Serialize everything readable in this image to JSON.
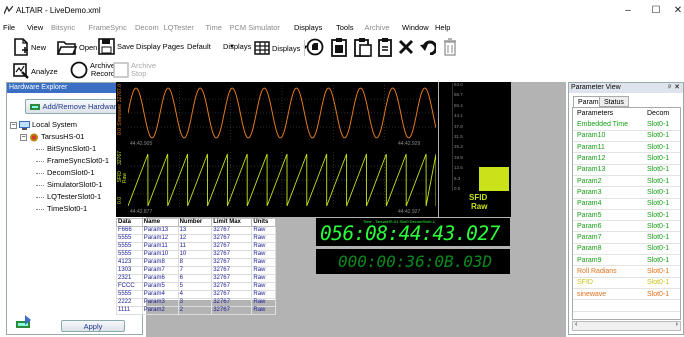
{
  "window": {
    "title": "ALTAIR - LiveDemo.xml",
    "minimize": "–",
    "maximize": "☐",
    "close": "✕"
  },
  "menu": [
    {
      "label": "File",
      "dim": false
    },
    {
      "label": "View",
      "dim": false
    },
    {
      "label": "Bitsync",
      "dim": true
    },
    {
      "label": "FrameSync",
      "dim": true
    },
    {
      "label": "Decom",
      "dim": true
    },
    {
      "label": "LQTester",
      "dim": true
    },
    {
      "label": "Time",
      "dim": true
    },
    {
      "label": "PCM Simulator",
      "dim": true
    },
    {
      "label": "Displays",
      "dim": false
    },
    {
      "label": "Tools",
      "dim": false
    },
    {
      "label": "Archive",
      "dim": true
    },
    {
      "label": "Window",
      "dim": false
    },
    {
      "label": "Help",
      "dim": false
    }
  ],
  "toolbar": {
    "new": "New",
    "open": "Open",
    "save": "Save",
    "display_pages": "Display Pages",
    "display_pages_value": "Default",
    "displays": "Displays",
    "displays2": "Displays",
    "analyze": "Analyze",
    "archive_record": "Archive\nRecord",
    "archive_stop": "Archive\nStop"
  },
  "explorer": {
    "title": "Hardware Explorer",
    "pin": "ᵖ",
    "close": "✕",
    "add_button": "Add/Remove Hardware",
    "root": "Local System",
    "device": "TarsusHS-01",
    "children": [
      "BitSyncSlot0-1",
      "FrameSyncSlot0-1",
      "DecomSlot0-1",
      "SimulatorSlot0-1",
      "LQTesterSlot0-1",
      "TimeSlot0-1"
    ],
    "apply": "Apply"
  },
  "plots": {
    "top": {
      "ylabel_top": "32767.0",
      "ylabel_mid": "Sinewave",
      "ylabel_bottom": "0.0",
      "time_left": "44:42.905",
      "time_right": "44:42.929"
    },
    "bottom": {
      "ylabel_top": "32767",
      "ylabel_mid1": "SFID",
      "ylabel_mid2": "Raw",
      "ylabel_bottom": "0.0",
      "time_left": "44:42.877",
      "time_right": "44:42.927"
    }
  },
  "bar": {
    "ticks": [
      "63.0",
      "56.7",
      "50.4",
      "44.1",
      "37.8",
      "31.5",
      "25.2",
      "18.9",
      "12.6",
      "6.3",
      "0.0"
    ],
    "value_fraction": 0.22,
    "label1": "SFID",
    "label2": "Raw",
    "color": "#c9e21a"
  },
  "param_table": {
    "headers": [
      "Data",
      "Name",
      "Number",
      "Limit Max",
      "Units"
    ],
    "rows": [
      [
        "F666",
        "Param13",
        "13",
        "32767",
        "Raw"
      ],
      [
        "5555",
        "Param12",
        "12",
        "32767",
        "Raw"
      ],
      [
        "5555",
        "Param11",
        "11",
        "32767",
        "Raw"
      ],
      [
        "5555",
        "Param10",
        "10",
        "32767",
        "Raw"
      ],
      [
        "4123",
        "Param8",
        "8",
        "32767",
        "Raw"
      ],
      [
        "1303",
        "Param7",
        "7",
        "32767",
        "Raw"
      ],
      [
        "2321",
        "Param6",
        "6",
        "32767",
        "Raw"
      ],
      [
        "FCCC",
        "Param5",
        "5",
        "32767",
        "Raw"
      ],
      [
        "5555",
        "Param4",
        "4",
        "32767",
        "Raw"
      ],
      [
        "2222",
        "Param3",
        "3",
        "32767",
        "Raw"
      ],
      [
        "1111",
        "Param2",
        "2",
        "32767",
        "Raw"
      ]
    ]
  },
  "time_display": {
    "header": "Time - TarsusHS-01 Slot0 DecomSlot0-1",
    "value": "056:08:44:43.027"
  },
  "hex_display": {
    "value": "000:00:36:0B.03D"
  },
  "param_view": {
    "title": "Parameter View",
    "pin": "ᵖ",
    "close": "✕",
    "tabs": [
      "Params",
      "Status"
    ],
    "headers": [
      "Parameters",
      "Decom"
    ],
    "rows": [
      {
        "name": "Embedded Time",
        "decom": "Slot0-1",
        "color": "#16a016"
      },
      {
        "name": "Param10",
        "decom": "Slot0-1",
        "color": "#16a016"
      },
      {
        "name": "Param11",
        "decom": "Slot0-1",
        "color": "#16a016"
      },
      {
        "name": "Param12",
        "decom": "Slot0-1",
        "color": "#16a016"
      },
      {
        "name": "Param13",
        "decom": "Slot0-1",
        "color": "#16a016"
      },
      {
        "name": "Param2",
        "decom": "Slot0-1",
        "color": "#16a016"
      },
      {
        "name": "Param3",
        "decom": "Slot0-1",
        "color": "#16a016"
      },
      {
        "name": "Param4",
        "decom": "Slot0-1",
        "color": "#16a016"
      },
      {
        "name": "Param5",
        "decom": "Slot0-1",
        "color": "#16a016"
      },
      {
        "name": "Param6",
        "decom": "Slot0-1",
        "color": "#16a016"
      },
      {
        "name": "Param7",
        "decom": "Slot0-1",
        "color": "#16a016"
      },
      {
        "name": "Param8",
        "decom": "Slot0-1",
        "color": "#16a016"
      },
      {
        "name": "Param9",
        "decom": "Slot0-1",
        "color": "#16a016"
      },
      {
        "name": "Roll Radians",
        "decom": "Slot0-1",
        "color": "#e0701a"
      },
      {
        "name": "SFID",
        "decom": "Slot0-1",
        "color": "#c9c21a"
      },
      {
        "name": "sinewave",
        "decom": "Slot0-1",
        "color": "#e0701a"
      }
    ]
  },
  "colors": {
    "sine": "#e07a1e",
    "saw": "#c9e21a",
    "digits": "#29ff3a",
    "accent": "#3a6fc4"
  }
}
